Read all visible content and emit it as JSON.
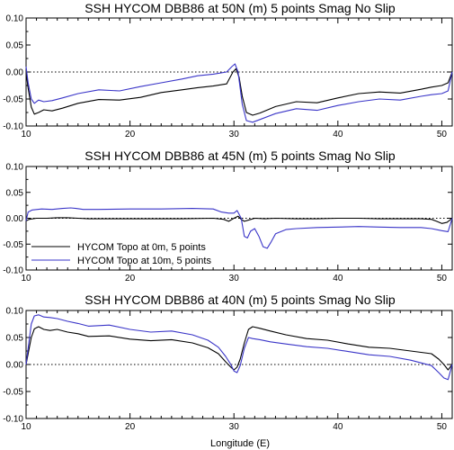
{
  "figure": {
    "xlabel": "Longitude (E)",
    "legend": {
      "entries": [
        {
          "label": "HYCOM Topo at 0m, 5 points",
          "color": "#000000"
        },
        {
          "label": "HYCOM Topo at 10m, 5 points",
          "color": "#3a35c8"
        }
      ]
    }
  },
  "chart_data": [
    {
      "type": "line",
      "title": "SSH HYCOM DBB86 at 50N (m) 5 points Smag No Slip",
      "xlabel": "",
      "ylabel": "",
      "xlim": [
        10,
        51
      ],
      "ylim": [
        -0.1,
        0.1
      ],
      "xticks": [
        "10",
        "20",
        "30",
        "40",
        "50"
      ],
      "yticks": [
        "-0.10",
        "-0.05",
        "0.00",
        "0.05",
        "0.10"
      ],
      "zero_line": "dotted",
      "series": [
        {
          "color": "#000000",
          "x": [
            10.0,
            10.2,
            10.5,
            10.8,
            11.2,
            11.7,
            12.5,
            13.5,
            15,
            17,
            19,
            21,
            23,
            25,
            26.5,
            28,
            29.3,
            29.9,
            30.2,
            30.5,
            30.8,
            31.2,
            31.8,
            32.5,
            34,
            36,
            38,
            40,
            42,
            44,
            46,
            48,
            49,
            50,
            50.6,
            51
          ],
          "y": [
            0.0,
            -0.03,
            -0.065,
            -0.078,
            -0.075,
            -0.07,
            -0.072,
            -0.067,
            -0.058,
            -0.051,
            -0.052,
            -0.047,
            -0.038,
            -0.033,
            -0.029,
            -0.026,
            -0.022,
            0.0,
            0.006,
            -0.01,
            -0.045,
            -0.075,
            -0.08,
            -0.076,
            -0.064,
            -0.055,
            -0.057,
            -0.048,
            -0.04,
            -0.037,
            -0.039,
            -0.032,
            -0.028,
            -0.025,
            -0.02,
            0.0
          ]
        },
        {
          "color": "#3a35c8",
          "x": [
            10.0,
            10.2,
            10.5,
            10.8,
            11.2,
            11.7,
            12.5,
            13.5,
            15,
            17,
            19,
            21,
            23,
            25,
            26.5,
            28,
            29.3,
            29.8,
            30.1,
            30.4,
            30.8,
            31.2,
            31.8,
            32.5,
            34,
            36,
            38,
            40,
            42,
            44,
            46,
            48,
            49,
            50,
            50.6,
            51
          ],
          "y": [
            0.01,
            -0.02,
            -0.05,
            -0.058,
            -0.052,
            -0.055,
            -0.053,
            -0.048,
            -0.04,
            -0.033,
            -0.035,
            -0.027,
            -0.02,
            -0.013,
            -0.007,
            -0.004,
            0.0,
            0.01,
            0.015,
            0.0,
            -0.06,
            -0.09,
            -0.093,
            -0.088,
            -0.077,
            -0.068,
            -0.071,
            -0.062,
            -0.055,
            -0.05,
            -0.052,
            -0.045,
            -0.042,
            -0.04,
            -0.035,
            0.0
          ]
        }
      ]
    },
    {
      "type": "line",
      "title": "SSH HYCOM DBB86 at 45N (m) 5 points Smag No Slip",
      "xlabel": "",
      "ylabel": "",
      "xlim": [
        10,
        51
      ],
      "ylim": [
        -0.1,
        0.1
      ],
      "xticks": [
        "10",
        "20",
        "30",
        "40",
        "50"
      ],
      "yticks": [
        "-0.10",
        "-0.05",
        "0.00",
        "0.05",
        "0.10"
      ],
      "zero_line": "dotted",
      "series": [
        {
          "color": "#000000",
          "x": [
            10.0,
            10.3,
            11,
            12,
            13,
            14,
            15,
            16,
            18,
            20,
            22,
            25,
            28,
            29,
            29.5,
            30,
            30.4,
            30.7,
            31,
            31.5,
            32,
            33,
            34,
            36,
            38,
            40,
            42,
            44,
            46,
            48,
            49,
            49.5,
            50,
            50.5,
            51
          ],
          "y": [
            -0.005,
            -0.002,
            0.0,
            0.0,
            0.001,
            0.001,
            0.0,
            -0.001,
            -0.001,
            -0.001,
            -0.001,
            -0.001,
            0.0,
            -0.002,
            -0.006,
            0.0,
            0.004,
            -0.002,
            -0.006,
            -0.003,
            0.0,
            -0.001,
            0.0,
            -0.001,
            -0.001,
            0.0,
            0.0,
            -0.001,
            -0.001,
            -0.001,
            -0.002,
            -0.006,
            -0.01,
            -0.008,
            0.0
          ]
        },
        {
          "color": "#3a35c8",
          "x": [
            10.0,
            10.2,
            10.6,
            11.5,
            12.5,
            13.5,
            14.3,
            14.8,
            15.5,
            17,
            20,
            23,
            26,
            28,
            28.8,
            29.5,
            30,
            30.3,
            30.7,
            31,
            31.3,
            31.6,
            32,
            32.4,
            32.8,
            33.2,
            33.6,
            34,
            35,
            36,
            38,
            40,
            42,
            44,
            46,
            48,
            49,
            50,
            50.6,
            51
          ],
          "y": [
            -0.005,
            0.012,
            0.016,
            0.018,
            0.017,
            0.019,
            0.02,
            0.019,
            0.017,
            0.017,
            0.018,
            0.018,
            0.019,
            0.018,
            0.012,
            0.01,
            0.01,
            0.015,
            0.0,
            -0.035,
            -0.038,
            -0.025,
            -0.02,
            -0.035,
            -0.055,
            -0.058,
            -0.045,
            -0.03,
            -0.022,
            -0.02,
            -0.018,
            -0.017,
            -0.016,
            -0.017,
            -0.018,
            -0.018,
            -0.02,
            -0.024,
            -0.026,
            0.0
          ]
        }
      ]
    },
    {
      "type": "line",
      "title": "SSH HYCOM DBB86 at 40N (m) 5 points Smag No Slip",
      "xlabel": "Longitude (E)",
      "ylabel": "",
      "xlim": [
        10,
        51
      ],
      "ylim": [
        -0.1,
        0.1
      ],
      "xticks": [
        "10",
        "20",
        "30",
        "40",
        "50"
      ],
      "yticks": [
        "-0.10",
        "-0.05",
        "0.00",
        "0.05",
        "0.10"
      ],
      "zero_line": "dotted",
      "series": [
        {
          "color": "#000000",
          "x": [
            10.0,
            10.2,
            10.5,
            10.8,
            11.2,
            11.7,
            12.3,
            13,
            14,
            15,
            16,
            18,
            20,
            22,
            24,
            26,
            27.5,
            28.5,
            29.2,
            29.7,
            30,
            30.3,
            30.6,
            31,
            31.4,
            31.8,
            32.5,
            33.5,
            35,
            37,
            39,
            41,
            43,
            45,
            47,
            49,
            49.7,
            50.2,
            50.6,
            51
          ],
          "y": [
            0.0,
            0.02,
            0.05,
            0.066,
            0.07,
            0.065,
            0.063,
            0.065,
            0.06,
            0.057,
            0.052,
            0.053,
            0.047,
            0.044,
            0.046,
            0.04,
            0.031,
            0.02,
            0.005,
            -0.005,
            -0.01,
            -0.005,
            0.01,
            0.04,
            0.065,
            0.07,
            0.067,
            0.062,
            0.055,
            0.048,
            0.045,
            0.038,
            0.032,
            0.03,
            0.025,
            0.02,
            0.01,
            0.0,
            -0.01,
            0.0
          ]
        },
        {
          "color": "#3a35c8",
          "x": [
            10.0,
            10.2,
            10.5,
            10.8,
            11.2,
            11.7,
            12.3,
            13,
            14,
            15,
            16,
            18,
            20,
            22,
            24,
            26,
            27.5,
            28.5,
            29.2,
            29.7,
            30,
            30.3,
            30.6,
            31,
            31.4,
            31.8,
            32.5,
            33.5,
            35,
            37,
            39,
            41,
            43,
            45,
            47,
            49,
            49.7,
            50.2,
            50.6,
            51
          ],
          "y": [
            0.0,
            0.03,
            0.075,
            0.09,
            0.092,
            0.088,
            0.087,
            0.085,
            0.08,
            0.076,
            0.071,
            0.073,
            0.065,
            0.06,
            0.062,
            0.055,
            0.045,
            0.032,
            0.015,
            0.0,
            -0.012,
            -0.015,
            -0.002,
            0.03,
            0.05,
            0.048,
            0.046,
            0.042,
            0.038,
            0.033,
            0.03,
            0.024,
            0.018,
            0.015,
            0.008,
            -0.002,
            -0.015,
            -0.025,
            -0.028,
            0.0
          ]
        }
      ]
    }
  ]
}
